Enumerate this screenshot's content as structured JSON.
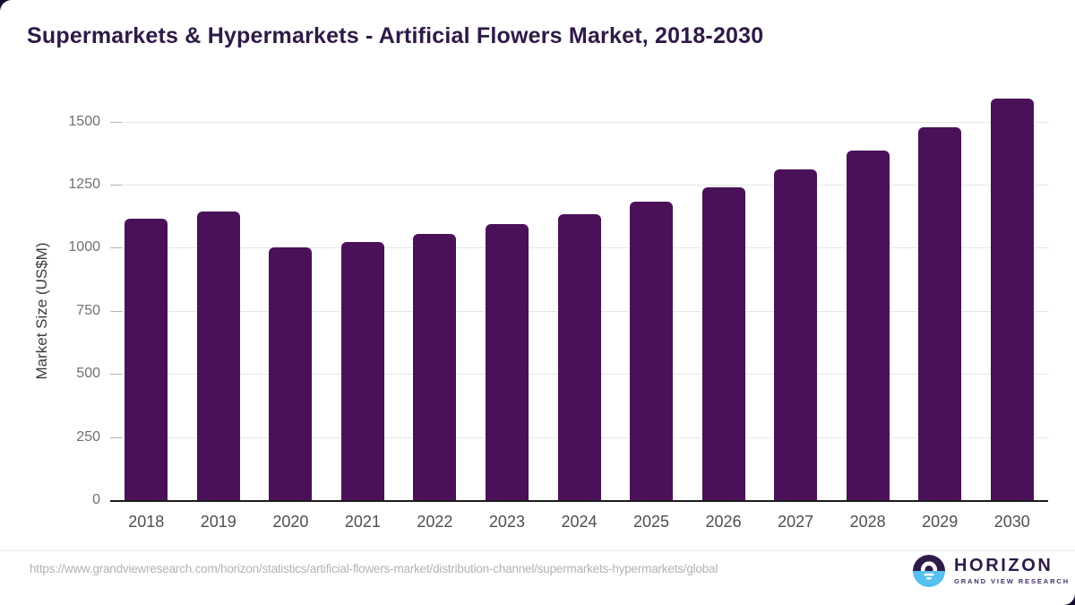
{
  "page": {
    "title": "Supermarkets & Hypermarkets - Artificial Flowers Market, 2018-2030",
    "source_url": "https://www.grandviewresearch.com/horizon/statistics/artificial-flowers-market/distribution-channel/supermarkets-hypermarkets/global"
  },
  "chart_data": {
    "type": "bar",
    "title": "Supermarkets & Hypermarkets - Artificial Flowers Market, 2018-2030",
    "xlabel": "",
    "ylabel": "Market Size (US$M)",
    "categories": [
      "2018",
      "2019",
      "2020",
      "2021",
      "2022",
      "2023",
      "2024",
      "2025",
      "2026",
      "2027",
      "2028",
      "2029",
      "2030"
    ],
    "values": [
      1115,
      1144,
      1000,
      1024,
      1056,
      1092,
      1132,
      1184,
      1239,
      1309,
      1385,
      1479,
      1591
    ],
    "yticks": [
      0,
      250,
      500,
      750,
      1000,
      1250,
      1500
    ],
    "ylim": [
      0,
      1600
    ],
    "grid": true,
    "legend": "none",
    "bar_color": "#4a1158"
  },
  "footer": {
    "logo_name": "HORIZON",
    "logo_subtitle": "GRAND VIEW RESEARCH"
  },
  "colors": {
    "title_text": "#2e1a47",
    "bar": "#4a1158",
    "axis_line": "#1b1b1b",
    "gridline": "#e7e7e7",
    "tick_text": "#707070",
    "x_tick_text": "#4f4f4f",
    "url_text": "#b3b3b3",
    "logo_purple": "#2d1b49",
    "logo_blue": "#56c0ee"
  }
}
